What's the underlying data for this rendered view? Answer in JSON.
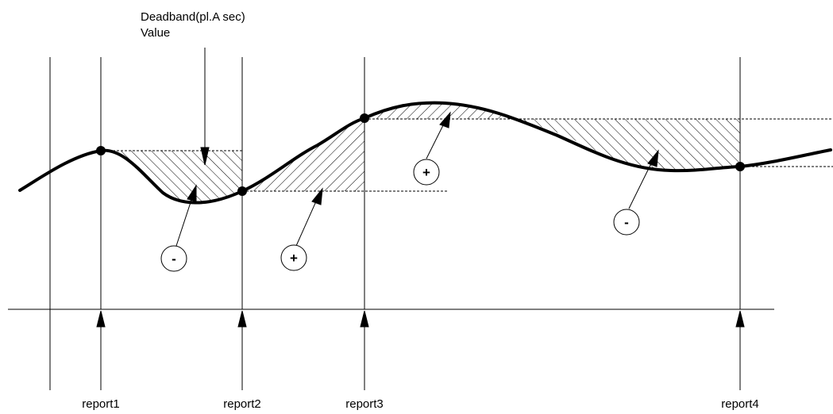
{
  "title_line1": "Deadband(pl.A sec)",
  "title_line2": "Value",
  "reports": [
    {
      "label": "report1"
    },
    {
      "label": "report2"
    },
    {
      "label": "report3"
    },
    {
      "label": "report4"
    }
  ],
  "area_signs": [
    "-",
    "+",
    "+",
    "-"
  ],
  "colors": {
    "line": "#000000",
    "background": "#ffffff"
  }
}
